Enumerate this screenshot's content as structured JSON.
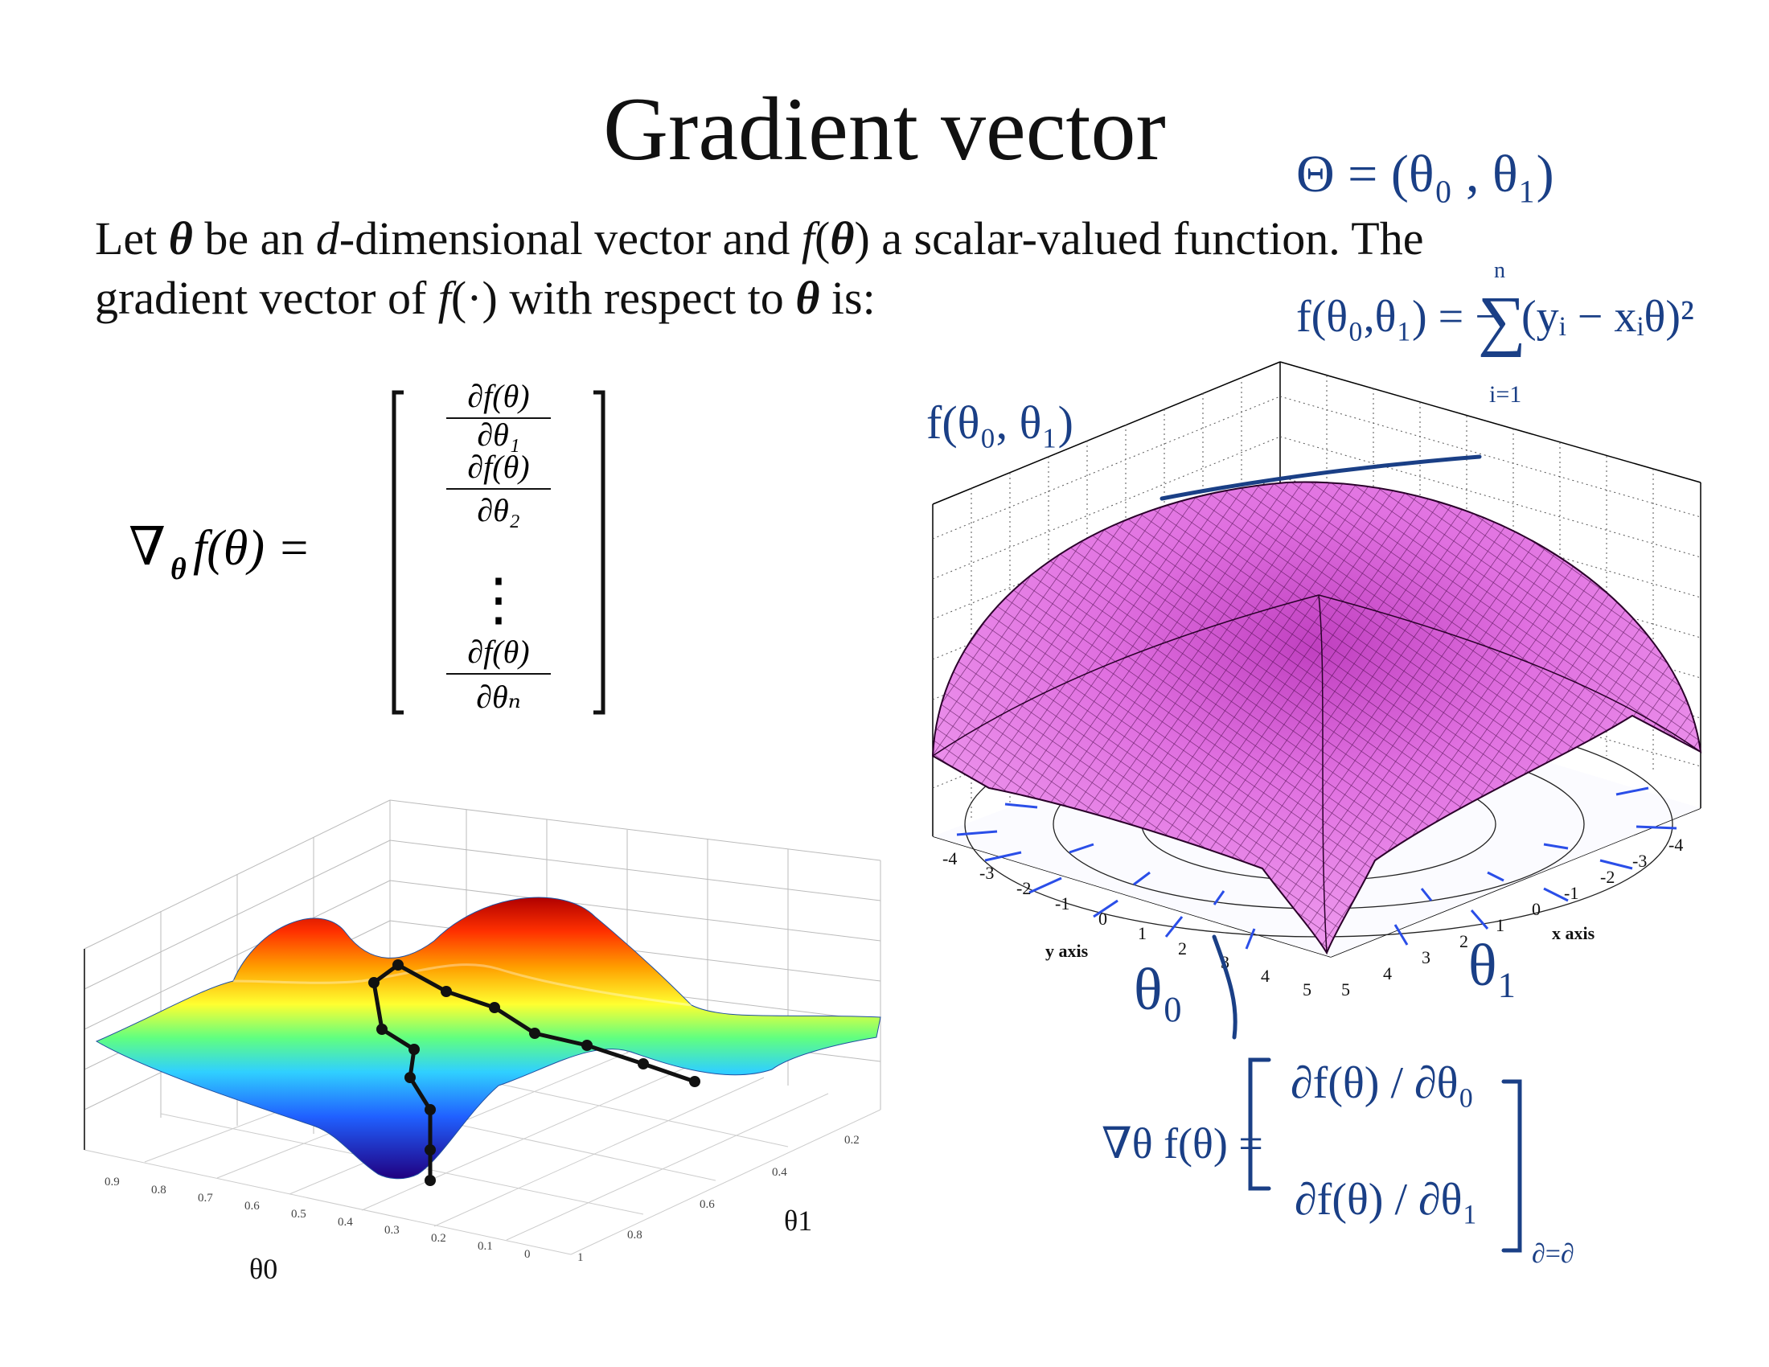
{
  "slide": {
    "title": "Gradient vector",
    "text": {
      "let": "Let ",
      "theta": "θ",
      "be_an": " be an ",
      "d": "d",
      "dim": "-dimensional vector and ",
      "f": "f",
      "open": "(",
      "close": ")",
      "scalar": " a scalar-valued function. The",
      "gradient_of": "gradient vector of ",
      "dot_arg": "(·)",
      "wrt": " with respect to ",
      "is": " is:"
    }
  },
  "formula": {
    "nabla": "∇",
    "sub_theta": "θ",
    "lhs_rest": "f(θ) =",
    "num": "∂f(θ)",
    "den1": "∂θ₁",
    "den2": "∂θ₂",
    "vdots": "⋮",
    "denn": "∂θₙ"
  },
  "right_plot": {
    "left_ticks": [
      "-4",
      "-3",
      "-2",
      "-1",
      "0",
      "1",
      "2",
      "3",
      "4",
      "5"
    ],
    "right_ticks": [
      "5",
      "4",
      "3",
      "2",
      "1",
      "0",
      "-1",
      "-2",
      "-3",
      "-4"
    ],
    "left_axis_label": "y axis",
    "right_axis_label": "x axis"
  },
  "left_plot": {
    "theta0_ticks": [
      "0.9",
      "0.8",
      "0.7",
      "0.6",
      "0.5",
      "0.4",
      "0.3",
      "0.2",
      "0.1",
      "0"
    ],
    "theta1_ticks": [
      "0.2",
      "0.4",
      "0.6",
      "0.8",
      "1"
    ],
    "theta0_label": "θ0",
    "theta1_label": "θ1"
  },
  "handwriting": {
    "theta_def": "Θ = (θ₀ , θ₁)",
    "f_def": "f(θ₀,θ₁) = −",
    "sum": "∑",
    "sum_top": "n",
    "sum_bot": "i=1",
    "sum_body": "(yᵢ − xᵢθ)²",
    "f_label": "f(θ₀, θ₁)",
    "theta0_label": "θ₀",
    "theta1_label": "θ₁",
    "grad_lhs": "∇θ f(θ) =",
    "grad_row1": "∂f(θ) / ∂θ₀",
    "grad_row2": "∂f(θ) / ∂θ₁",
    "corner": "∂=∂"
  },
  "colors": {
    "ink": "#1a3f86",
    "surface": "#e070e0",
    "arrows": "#2a4ee8"
  }
}
